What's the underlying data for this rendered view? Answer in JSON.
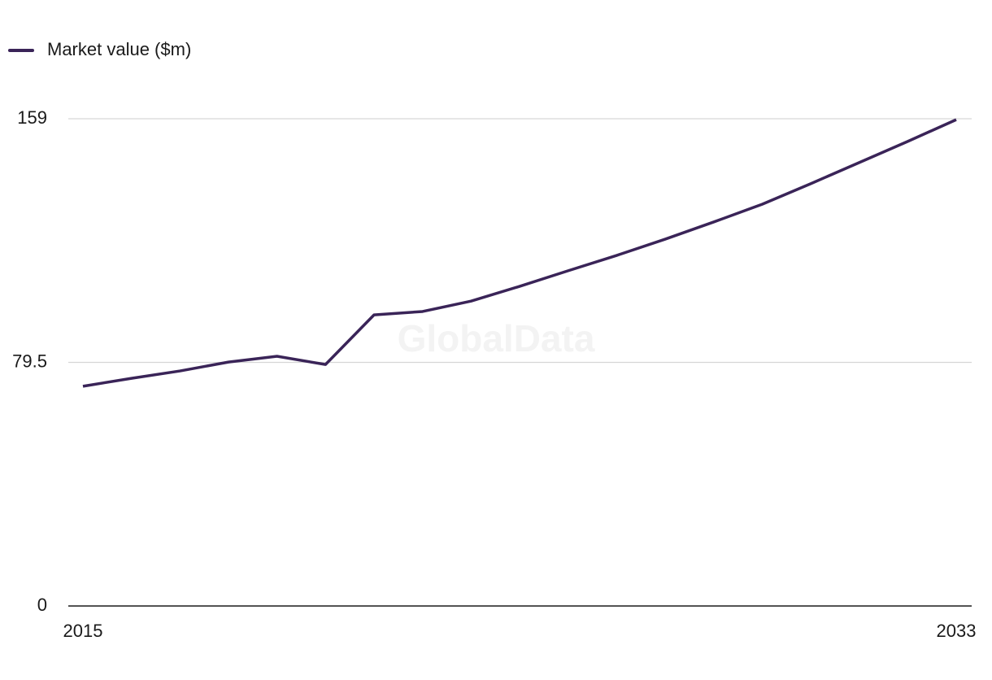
{
  "chart_data": {
    "type": "line",
    "watermark": "GlobalData",
    "x": [
      2015,
      2016,
      2017,
      2018,
      2019,
      2020,
      2021,
      2022,
      2023,
      2024,
      2025,
      2026,
      2027,
      2028,
      2029,
      2030,
      2031,
      2032,
      2033
    ],
    "series": [
      {
        "name": "Market value ($m)",
        "color": "#3a2458",
        "values": [
          71.7,
          74.3,
          76.7,
          79.6,
          81.5,
          78.8,
          95.0,
          96.1,
          99.5,
          104.3,
          109.4,
          114.4,
          119.7,
          125.3,
          131.1,
          137.8,
          144.7,
          151.6,
          158.7
        ]
      }
    ],
    "xlim": [
      2015,
      2033
    ],
    "xticks": [
      2015,
      2033
    ],
    "ylim": [
      0,
      159
    ],
    "yticks": [
      0,
      79.5,
      159
    ],
    "grid": true,
    "legend": "top-left"
  }
}
